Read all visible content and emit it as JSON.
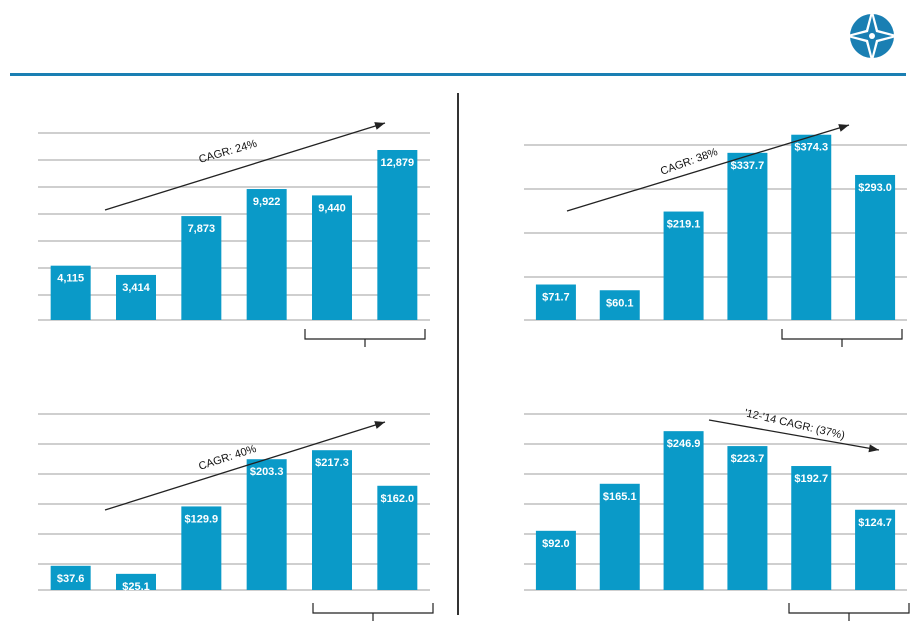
{
  "colors": {
    "bar": "#0a9ac8",
    "rule": "#1a7fb3",
    "grid": "#bfbfbf",
    "logo_bg": "#1a7fb3"
  },
  "logo": {
    "icon": "compass-star-icon"
  },
  "chart_data": [
    {
      "type": "bar",
      "title": "",
      "categories": [
        "",
        "",
        "",
        "",
        "",
        ""
      ],
      "values": [
        4115,
        3414,
        7873,
        9922,
        9440,
        12879
      ],
      "value_labels": [
        "4,115",
        "3,414",
        "7,873",
        "9,922",
        "9,440",
        "12,879"
      ],
      "ylim": [
        0,
        15000
      ],
      "grid": true,
      "annotation": "CAGR: 24%",
      "bracket_over_last": 2
    },
    {
      "type": "bar",
      "title": "",
      "categories": [
        "",
        "",
        "",
        "",
        "",
        ""
      ],
      "values": [
        71.7,
        60.1,
        219.1,
        337.7,
        374.3,
        293.0
      ],
      "value_labels": [
        "$71.7",
        "$60.1",
        "$219.1",
        "$337.7",
        "$374.3",
        "$293.0"
      ],
      "ylim": [
        0,
        400
      ],
      "grid": true,
      "annotation": "CAGR: 38%",
      "bracket_over_last": 2
    },
    {
      "type": "bar",
      "title": "",
      "categories": [
        "",
        "",
        "",
        "",
        "",
        ""
      ],
      "values": [
        37.6,
        25.1,
        129.9,
        203.3,
        217.3,
        162.0
      ],
      "value_labels": [
        "$37.6",
        "$25.1",
        "$129.9",
        "$203.3",
        "$217.3",
        "$162.0"
      ],
      "ylim": [
        0,
        300
      ],
      "grid": true,
      "annotation": "CAGR: 40%",
      "bracket_over_last": 2
    },
    {
      "type": "bar",
      "title": "",
      "categories": [
        "",
        "",
        "",
        "",
        "",
        ""
      ],
      "values": [
        92.0,
        165.1,
        246.9,
        223.7,
        192.7,
        124.7
      ],
      "value_labels": [
        "$92.0",
        "$165.1",
        "$246.9",
        "$223.7",
        "$192.7",
        "$124.7"
      ],
      "ylim": [
        0,
        300
      ],
      "grid": true,
      "annotation": "'12-'14 CAGR: (37%)",
      "bracket_over_last": 2
    }
  ]
}
